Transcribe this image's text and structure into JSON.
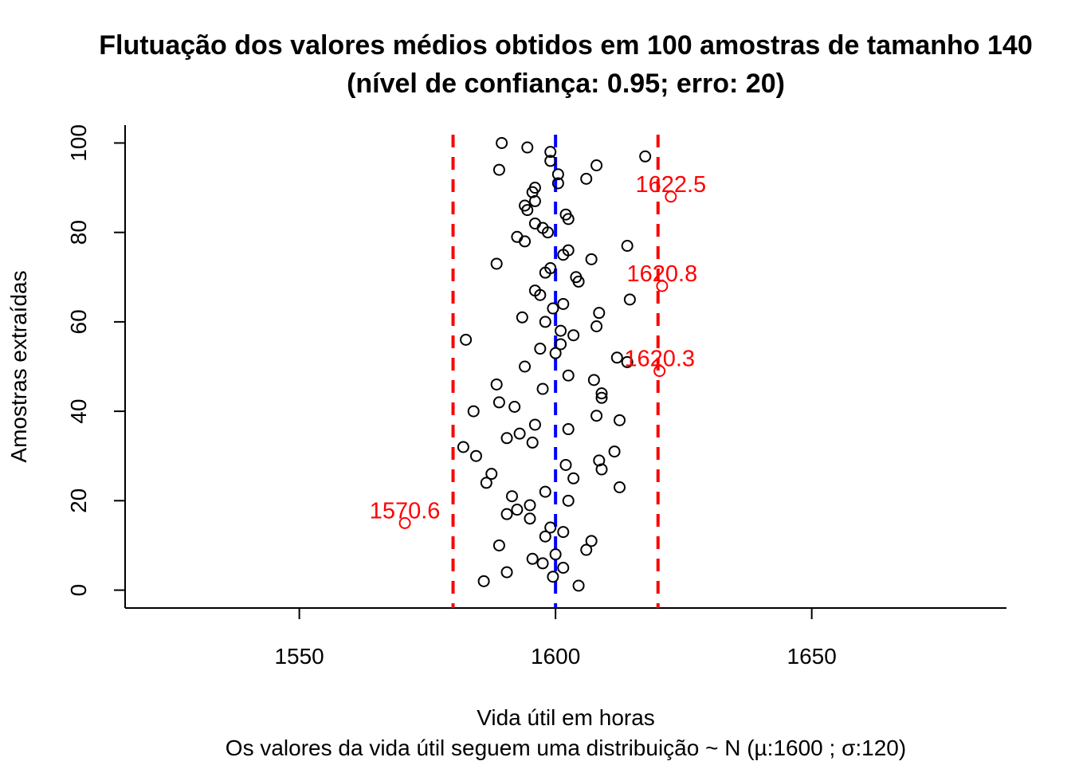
{
  "chart_data": {
    "type": "scatter",
    "title": "Flutuação dos valores médios obtidos em 100 amostras de tamanho 140",
    "subtitle": "(nível de confiança: 0.95; erro: 20)",
    "xlabel": "Vida útil em horas",
    "xlabel2": "Os valores da vida útil seguem uma distribuição ~ N  (µ:1600 ; σ:120)",
    "ylabel": "Amostras extraídas",
    "xlim": [
      1516,
      1688
    ],
    "ylim": [
      -4,
      104
    ],
    "xticks": [
      1550,
      1600,
      1650
    ],
    "yticks": [
      0,
      20,
      40,
      60,
      80,
      100
    ],
    "mean_line": {
      "x": 1600,
      "color": "#0000ff"
    },
    "limit_lines": [
      {
        "x": 1580,
        "color": "#ff0000"
      },
      {
        "x": 1620,
        "color": "#ff0000"
      }
    ],
    "point_color": "#000000",
    "outlier_color": "#ff0000",
    "points": [
      {
        "x": 1604.5,
        "y": 1
      },
      {
        "x": 1586.0,
        "y": 2
      },
      {
        "x": 1599.5,
        "y": 3
      },
      {
        "x": 1590.5,
        "y": 4
      },
      {
        "x": 1601.5,
        "y": 5
      },
      {
        "x": 1597.5,
        "y": 6
      },
      {
        "x": 1595.5,
        "y": 7
      },
      {
        "x": 1600.0,
        "y": 8
      },
      {
        "x": 1606.0,
        "y": 9
      },
      {
        "x": 1589.0,
        "y": 10
      },
      {
        "x": 1607.0,
        "y": 11
      },
      {
        "x": 1598.0,
        "y": 12
      },
      {
        "x": 1601.5,
        "y": 13
      },
      {
        "x": 1599.0,
        "y": 14
      },
      {
        "x": 1595.0,
        "y": 16
      },
      {
        "x": 1590.5,
        "y": 17
      },
      {
        "x": 1592.5,
        "y": 18
      },
      {
        "x": 1595.0,
        "y": 19
      },
      {
        "x": 1602.5,
        "y": 20
      },
      {
        "x": 1591.5,
        "y": 21
      },
      {
        "x": 1598.0,
        "y": 22
      },
      {
        "x": 1612.5,
        "y": 23
      },
      {
        "x": 1586.5,
        "y": 24
      },
      {
        "x": 1603.5,
        "y": 25
      },
      {
        "x": 1587.5,
        "y": 26
      },
      {
        "x": 1609.0,
        "y": 27
      },
      {
        "x": 1602.0,
        "y": 28
      },
      {
        "x": 1608.5,
        "y": 29
      },
      {
        "x": 1584.5,
        "y": 30
      },
      {
        "x": 1611.5,
        "y": 31
      },
      {
        "x": 1582.0,
        "y": 32
      },
      {
        "x": 1595.5,
        "y": 33
      },
      {
        "x": 1590.5,
        "y": 34
      },
      {
        "x": 1593.0,
        "y": 35
      },
      {
        "x": 1602.5,
        "y": 36
      },
      {
        "x": 1596.0,
        "y": 37
      },
      {
        "x": 1612.5,
        "y": 38
      },
      {
        "x": 1608.0,
        "y": 39
      },
      {
        "x": 1584.0,
        "y": 40
      },
      {
        "x": 1592.0,
        "y": 41
      },
      {
        "x": 1589.0,
        "y": 42
      },
      {
        "x": 1609.0,
        "y": 43
      },
      {
        "x": 1609.0,
        "y": 44
      },
      {
        "x": 1597.5,
        "y": 45
      },
      {
        "x": 1588.5,
        "y": 46
      },
      {
        "x": 1607.5,
        "y": 47
      },
      {
        "x": 1602.5,
        "y": 48
      },
      {
        "x": 1594.0,
        "y": 50
      },
      {
        "x": 1614.0,
        "y": 51
      },
      {
        "x": 1612.0,
        "y": 52
      },
      {
        "x": 1600.0,
        "y": 53
      },
      {
        "x": 1597.0,
        "y": 54
      },
      {
        "x": 1601.0,
        "y": 55
      },
      {
        "x": 1582.5,
        "y": 56
      },
      {
        "x": 1603.5,
        "y": 57
      },
      {
        "x": 1601.0,
        "y": 58
      },
      {
        "x": 1608.0,
        "y": 59
      },
      {
        "x": 1598.0,
        "y": 60
      },
      {
        "x": 1593.5,
        "y": 61
      },
      {
        "x": 1608.5,
        "y": 62
      },
      {
        "x": 1599.5,
        "y": 63
      },
      {
        "x": 1601.5,
        "y": 64
      },
      {
        "x": 1614.5,
        "y": 65
      },
      {
        "x": 1597.0,
        "y": 66
      },
      {
        "x": 1596.0,
        "y": 67
      },
      {
        "x": 1604.5,
        "y": 69
      },
      {
        "x": 1604.0,
        "y": 70
      },
      {
        "x": 1598.0,
        "y": 71
      },
      {
        "x": 1599.0,
        "y": 72
      },
      {
        "x": 1588.5,
        "y": 73
      },
      {
        "x": 1607.0,
        "y": 74
      },
      {
        "x": 1601.5,
        "y": 75
      },
      {
        "x": 1602.5,
        "y": 76
      },
      {
        "x": 1614.0,
        "y": 77
      },
      {
        "x": 1594.0,
        "y": 78
      },
      {
        "x": 1592.5,
        "y": 79
      },
      {
        "x": 1598.5,
        "y": 80
      },
      {
        "x": 1597.5,
        "y": 81
      },
      {
        "x": 1596.0,
        "y": 82
      },
      {
        "x": 1602.5,
        "y": 83
      },
      {
        "x": 1602.0,
        "y": 84
      },
      {
        "x": 1594.5,
        "y": 85
      },
      {
        "x": 1594.0,
        "y": 86
      },
      {
        "x": 1596.0,
        "y": 87
      },
      {
        "x": 1595.5,
        "y": 89
      },
      {
        "x": 1596.0,
        "y": 90
      },
      {
        "x": 1600.5,
        "y": 91
      },
      {
        "x": 1606.0,
        "y": 92
      },
      {
        "x": 1600.5,
        "y": 93
      },
      {
        "x": 1589.0,
        "y": 94
      },
      {
        "x": 1608.0,
        "y": 95
      },
      {
        "x": 1599.0,
        "y": 96
      },
      {
        "x": 1617.5,
        "y": 97
      },
      {
        "x": 1599.0,
        "y": 98
      },
      {
        "x": 1594.5,
        "y": 99
      },
      {
        "x": 1589.5,
        "y": 100
      }
    ],
    "outliers": [
      {
        "x": 1570.6,
        "y": 15,
        "label": "1570.6"
      },
      {
        "x": 1620.3,
        "y": 49,
        "label": "1620.3"
      },
      {
        "x": 1620.8,
        "y": 68,
        "label": "1620.8"
      },
      {
        "x": 1622.5,
        "y": 88,
        "label": "1622.5"
      }
    ]
  }
}
